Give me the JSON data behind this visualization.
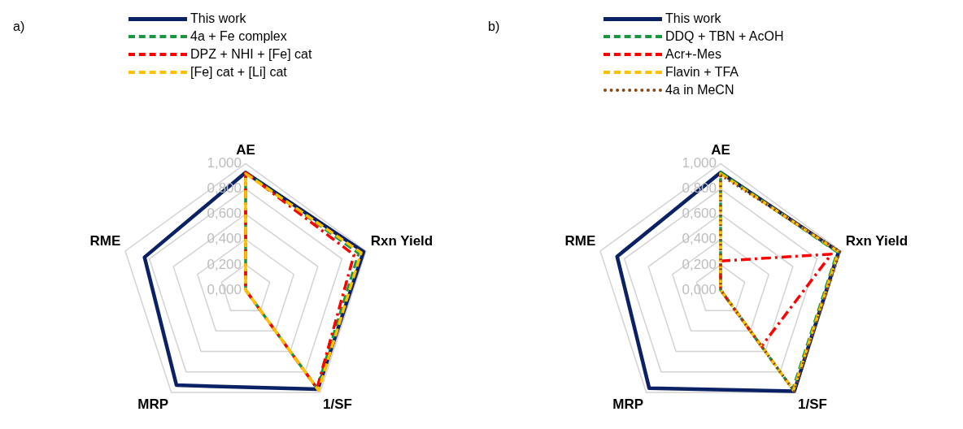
{
  "chart_data": [
    {
      "type": "radar",
      "title": "a)",
      "categories": [
        "AE",
        "Rxn Yield",
        "1/SF",
        "MRP",
        "RME"
      ],
      "ylim": [
        0,
        1
      ],
      "yticks": [
        {
          "value": 0,
          "label": "0,000"
        },
        {
          "value": 0.2,
          "label": "0,200"
        },
        {
          "value": 0.4,
          "label": "0,400"
        },
        {
          "value": 0.6,
          "label": "0,600"
        },
        {
          "value": 0.8,
          "label": "0,800"
        },
        {
          "value": 1,
          "label": "1,000"
        }
      ],
      "grid": true,
      "legend": "top",
      "marker": "none",
      "series": [
        {
          "name": "This work",
          "color": "#0b2166",
          "line_style": "solid",
          "values": [
            0.93,
            0.98,
            0.97,
            0.93,
            0.84
          ]
        },
        {
          "name": "4a + Fe complex",
          "color": "#1a9641",
          "line_style": "dashed",
          "values": [
            0.93,
            0.94,
            0.96,
            0,
            0
          ]
        },
        {
          "name": "DPZ + NHI + [Fe] cat",
          "color": "#ff0000",
          "line_style": "dashdot",
          "values": [
            0.93,
            0.9,
            0.96,
            0,
            0
          ]
        },
        {
          "name": "[Fe] cat + [Li] cat",
          "color": "#ffc000",
          "line_style": "dashed",
          "values": [
            0.92,
            0.96,
            0.98,
            0,
            0
          ]
        }
      ]
    },
    {
      "type": "radar",
      "title": "b)",
      "categories": [
        "AE",
        "Rxn Yield",
        "1/SF",
        "MRP",
        "RME"
      ],
      "ylim": [
        0,
        1
      ],
      "yticks": [
        {
          "value": 0,
          "label": "0,000"
        },
        {
          "value": 0.2,
          "label": "0,200"
        },
        {
          "value": 0.4,
          "label": "0,400"
        },
        {
          "value": 0.6,
          "label": "0,600"
        },
        {
          "value": 0.8,
          "label": "0,800"
        },
        {
          "value": 1,
          "label": "1,000"
        }
      ],
      "grid": true,
      "legend": "top",
      "marker": "none",
      "series": [
        {
          "name": "This work",
          "color": "#0b2166",
          "line_style": "solid",
          "values": [
            0.93,
            0.98,
            0.99,
            0.96,
            0.86
          ]
        },
        {
          "name": "DDQ + TBN + AcOH",
          "color": "#1a9641",
          "line_style": "dashed",
          "values": [
            0.93,
            0.97,
            0.97,
            0,
            0
          ]
        },
        {
          "name": "Acr+-Mes",
          "color": "#ff0000",
          "line_style": "dashdot",
          "values": [
            0.23,
            0.92,
            0.55,
            0,
            0
          ]
        },
        {
          "name": "Flavin + TFA",
          "color": "#ffc000",
          "line_style": "dashed",
          "values": [
            0.92,
            0.98,
            0.98,
            0,
            0
          ]
        },
        {
          "name": "4a in MeCN",
          "color": "#8b4513",
          "line_style": "dotted",
          "values": [
            0.91,
            0.99,
            0.99,
            0,
            0
          ]
        }
      ]
    }
  ]
}
